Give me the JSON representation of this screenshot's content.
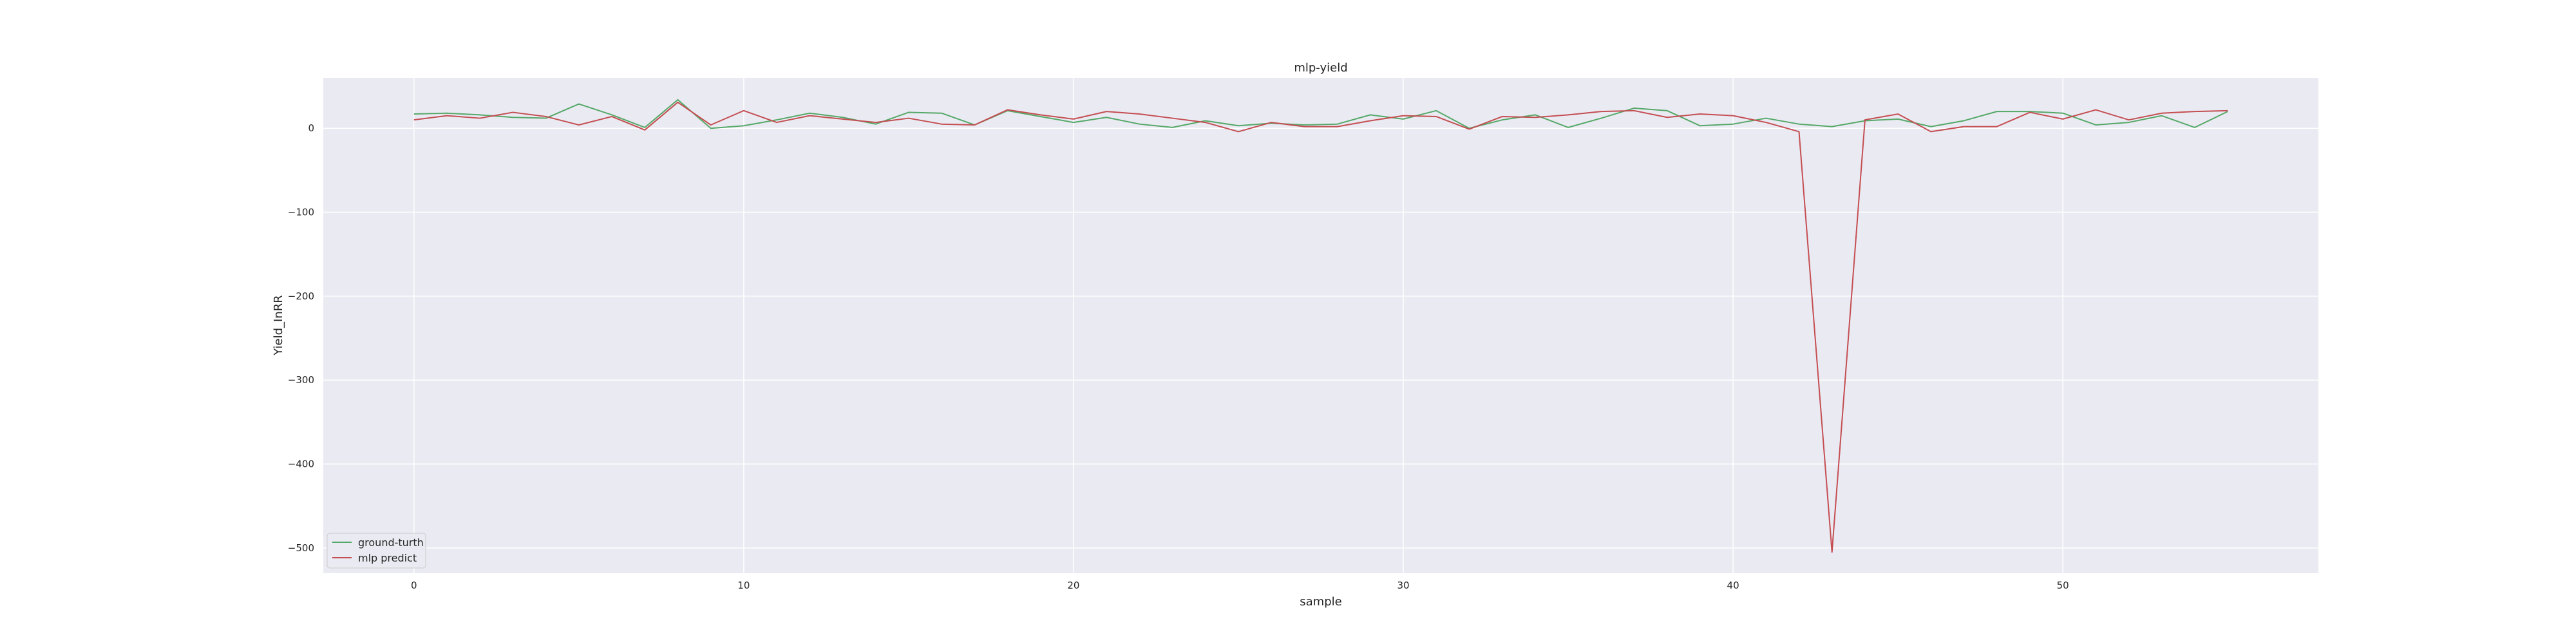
{
  "chart_data": {
    "type": "line",
    "title": "mlp-yield",
    "xlabel": "sample",
    "ylabel": "Yield_InRR",
    "xlim": [
      -2.75,
      57.75
    ],
    "ylim": [
      -530,
      60
    ],
    "xticks": [
      0,
      10,
      20,
      30,
      40,
      50
    ],
    "yticks": [
      0,
      -100,
      -200,
      -300,
      -400,
      -500
    ],
    "grid": true,
    "legend_position": "lower-left",
    "x": [
      0,
      1,
      2,
      3,
      4,
      5,
      6,
      7,
      8,
      9,
      10,
      11,
      12,
      13,
      14,
      15,
      16,
      17,
      18,
      19,
      20,
      21,
      22,
      23,
      24,
      25,
      26,
      27,
      28,
      29,
      30,
      31,
      32,
      33,
      34,
      35,
      36,
      37,
      38,
      39,
      40,
      41,
      42,
      43,
      44,
      45,
      46,
      47,
      48,
      49,
      50,
      51,
      52,
      53,
      54,
      55
    ],
    "series": [
      {
        "name": "ground-turth",
        "color": "#55a868",
        "values": [
          17,
          18,
          16,
          13,
          12,
          29,
          16,
          1,
          34,
          0,
          3,
          10,
          18,
          13,
          5,
          19,
          18,
          4,
          21,
          14,
          7,
          13,
          5,
          1,
          9,
          3,
          6,
          4,
          5,
          16,
          11,
          21,
          0,
          10,
          16,
          1,
          12,
          24,
          21,
          3,
          5,
          12,
          5,
          2,
          9,
          11,
          2,
          9,
          20,
          20,
          18,
          4,
          7,
          15,
          1,
          20
        ]
      },
      {
        "name": "mlp predict",
        "color": "#c44e52",
        "values": [
          10,
          15,
          12,
          19,
          14,
          4,
          14,
          -2,
          31,
          4,
          21,
          7,
          15,
          11,
          7,
          12,
          5,
          4,
          22,
          16,
          11,
          20,
          17,
          12,
          7,
          -4,
          7,
          2,
          2,
          9,
          15,
          14,
          -1,
          14,
          13,
          16,
          20,
          21,
          13,
          17,
          15,
          7,
          -4,
          -505,
          10,
          17,
          -4,
          2,
          2,
          19,
          11,
          22,
          10,
          18,
          20,
          21
        ]
      }
    ]
  }
}
